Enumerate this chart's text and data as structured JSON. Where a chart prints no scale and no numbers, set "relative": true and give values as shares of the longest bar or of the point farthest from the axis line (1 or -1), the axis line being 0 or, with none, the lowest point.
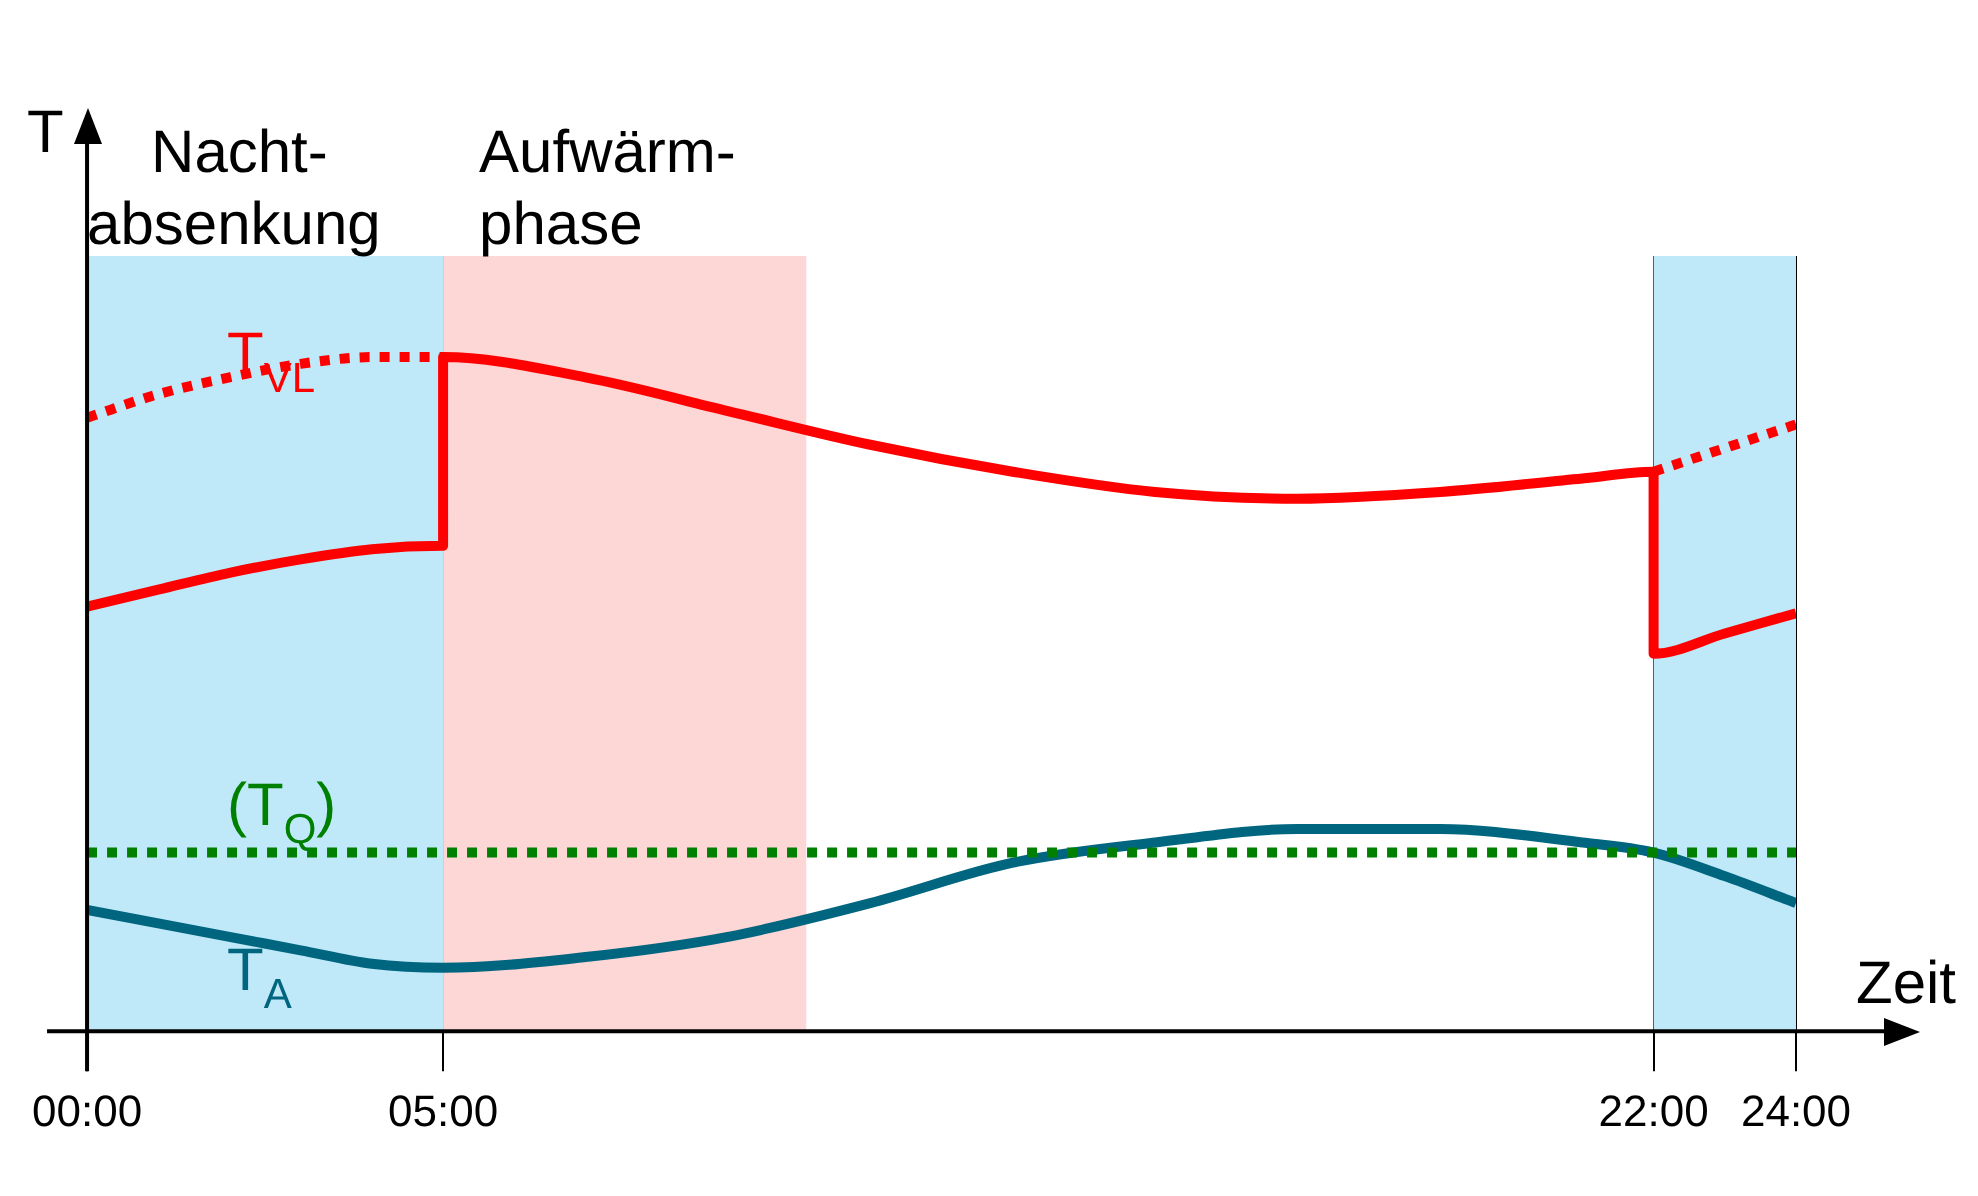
{
  "chart_data": {
    "type": "line",
    "relative": true,
    "xlabel": "Zeit",
    "ylabel": "T",
    "xlim": [
      0,
      24
    ],
    "xticks": [
      {
        "value": 0,
        "label": "00:00"
      },
      {
        "value": 5,
        "label": "05:00"
      },
      {
        "value": 22,
        "label": "22:00"
      },
      {
        "value": 24,
        "label": "24:00"
      }
    ],
    "grid": "x",
    "legend": false,
    "marker": "none",
    "bands": [
      {
        "axis": "x",
        "from": 0,
        "to": 5,
        "label": "Nacht-\nabsenkung",
        "color": "#bfe9f8"
      },
      {
        "axis": "x",
        "from": 5,
        "to": 10.1,
        "label": "Aufwärm-\nphase",
        "color": "#fdd6d6"
      },
      {
        "axis": "x",
        "from": 22,
        "to": 24,
        "color": "#bfe9f8"
      }
    ],
    "series": [
      {
        "name": "T$_{VL}$",
        "color": "#ff0000",
        "line_style": "dotted",
        "x": [
          0,
          1,
          2,
          3,
          4,
          5,
          13,
          22,
          23,
          24
        ],
        "values": [
          0.91,
          0.945,
          0.97,
          0.99,
          1.0,
          1.0,
          null,
          0.83,
          0.865,
          0.9
        ]
      },
      {
        "color": "#ff0000",
        "line_style": "solid",
        "x": [
          0,
          1,
          2,
          3,
          4,
          5,
          5,
          7,
          9,
          11,
          13,
          15,
          17,
          19,
          21,
          22,
          22,
          23,
          24
        ],
        "values": [
          0.63,
          0.655,
          0.68,
          0.7,
          0.715,
          0.72,
          1.0,
          0.97,
          0.92,
          0.87,
          0.83,
          0.8,
          0.79,
          0.8,
          0.82,
          0.83,
          0.56,
          0.59,
          0.62
        ]
      },
      {
        "name": "(T$_{Q}$)",
        "color": "#008000",
        "line_style": "dotted",
        "x": [
          0,
          24
        ],
        "values": [
          0.265,
          0.265
        ]
      },
      {
        "name": "T$_{A}$",
        "color": "#006680",
        "line_style": "solid",
        "x": [
          0,
          1,
          2,
          3,
          4,
          5,
          7,
          9,
          11,
          13,
          15,
          17,
          19,
          21,
          22,
          23,
          24
        ],
        "values": [
          0.18,
          0.16,
          0.14,
          0.12,
          0.1,
          0.094,
          0.11,
          0.14,
          0.19,
          0.25,
          0.28,
          0.3,
          0.3,
          0.28,
          0.265,
          0.23,
          0.19
        ]
      }
    ]
  }
}
